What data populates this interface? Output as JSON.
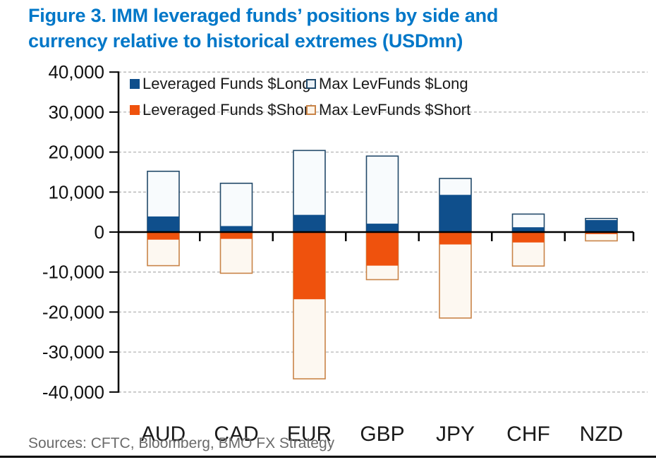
{
  "title": {
    "line1": "Figure 3. IMM leveraged funds’ positions by side and",
    "line2": "currency relative to historical extremes (USDmn)"
  },
  "footer": {
    "sources": "Sources: CFTC, Bloomberg, BMO FX Strategy"
  },
  "colors": {
    "title_text": "#0077c8",
    "long_fill": "#0f4f8c",
    "long_outline": "#234a6a",
    "short_fill": "#ef520d",
    "short_outline": "#c98448",
    "max_long_fill": "#f8fbfd",
    "max_short_fill": "#fdf8f1",
    "grid": "#b5b5b5",
    "axis": "#000000",
    "tick_text": "#111111",
    "sources_text": "#6a6a6a"
  },
  "legend": {
    "items": [
      {
        "label": "Leveraged Funds $Long",
        "swatch": "filled-blue"
      },
      {
        "label": "Max LevFunds $Long",
        "swatch": "outline-blue"
      },
      {
        "label": "Leveraged Funds $Short",
        "swatch": "filled-orange"
      },
      {
        "label": "Max LevFunds $Short",
        "swatch": "outline-orange"
      }
    ]
  },
  "chart_data": {
    "type": "bar",
    "title": "IMM leveraged funds’ positions by side and currency relative to historical extremes (USDmn)",
    "categories": [
      "AUD",
      "CAD",
      "EUR",
      "GBP",
      "JPY",
      "CHF",
      "NZD"
    ],
    "series": [
      {
        "name": "Leveraged Funds $Long",
        "style": "filled-blue",
        "values": [
          3900,
          1500,
          4300,
          2100,
          9300,
          1200,
          3000
        ]
      },
      {
        "name": "Max LevFunds $Long",
        "style": "outline-blue",
        "values": [
          15200,
          12200,
          20400,
          19000,
          13400,
          4500,
          3400
        ]
      },
      {
        "name": "Leveraged Funds $Short",
        "style": "filled-orange",
        "values": [
          -1900,
          -1700,
          -16800,
          -8400,
          -3100,
          -2600,
          -500
        ]
      },
      {
        "name": "Max LevFunds $Short",
        "style": "outline-orange",
        "values": [
          -8400,
          -10300,
          -36700,
          -11900,
          -21500,
          -8500,
          -2200
        ]
      }
    ],
    "xlabel": "",
    "ylabel": "",
    "ylim": [
      -40000,
      40000
    ],
    "ytick_step": 10000,
    "ytick_labels": [
      "40,000",
      "30,000",
      "20,000",
      "10,000",
      "0",
      "-10,000",
      "-20,000",
      "-30,000",
      "-40,000"
    ],
    "grid": "dashed-horizontal",
    "legend_position": "top-inside",
    "zero_line": true
  }
}
